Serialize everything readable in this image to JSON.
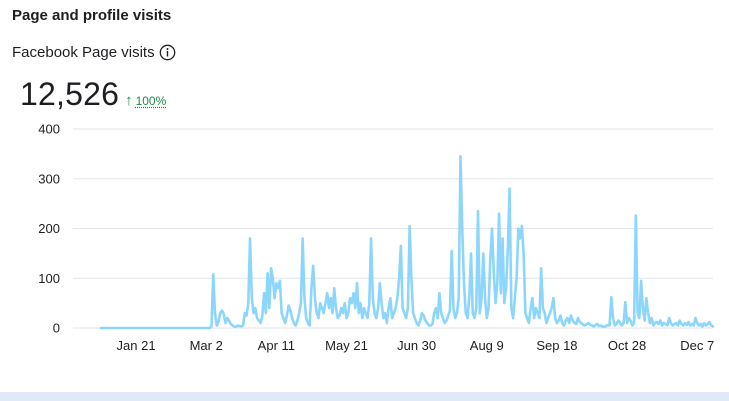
{
  "header": {
    "title": "Page and profile visits"
  },
  "metric": {
    "label": "Facebook Page visits",
    "value": "12,526",
    "change": "100%",
    "trend_direction": "up"
  },
  "colors": {
    "line": "#8dd6fb",
    "grid": "#e4e6eb",
    "trend": "#1f8a4c"
  },
  "icons": {
    "info": "info-icon",
    "trend": "arrow-up-icon"
  },
  "chart_data": {
    "type": "line",
    "title": "",
    "xlabel": "",
    "ylabel": "",
    "ylim": [
      0,
      400
    ],
    "yticks": [
      "0",
      "100",
      "200",
      "300",
      "400"
    ],
    "xticks": [
      {
        "label": "Jan 21",
        "day": 20
      },
      {
        "label": "Mar 2",
        "day": 60
      },
      {
        "label": "Apr 11",
        "day": 100
      },
      {
        "label": "May 21",
        "day": 140
      },
      {
        "label": "Jun 30",
        "day": 180
      },
      {
        "label": "Aug 9",
        "day": 220
      },
      {
        "label": "Sep 18",
        "day": 260
      },
      {
        "label": "Oct 28",
        "day": 300
      },
      {
        "label": "Dec 7",
        "day": 340
      }
    ],
    "grid": true,
    "legend": "none",
    "series": [
      {
        "values": [
          0,
          0,
          0,
          0,
          0,
          0,
          0,
          0,
          0,
          0,
          0,
          0,
          0,
          0,
          0,
          0,
          0,
          0,
          0,
          0,
          0,
          0,
          0,
          0,
          0,
          0,
          0,
          0,
          0,
          0,
          0,
          0,
          0,
          0,
          0,
          0,
          0,
          0,
          0,
          0,
          0,
          0,
          0,
          0,
          0,
          0,
          0,
          0,
          0,
          0,
          0,
          0,
          0,
          0,
          0,
          0,
          0,
          0,
          0,
          0,
          0,
          0,
          0,
          3,
          108,
          30,
          5,
          12,
          30,
          35,
          28,
          10,
          20,
          15,
          8,
          5,
          3,
          2,
          5,
          4,
          3,
          5,
          30,
          25,
          50,
          180,
          60,
          30,
          40,
          20,
          15,
          10,
          25,
          70,
          30,
          110,
          40,
          120,
          100,
          60,
          90,
          80,
          95,
          30,
          20,
          10,
          25,
          45,
          35,
          20,
          10,
          5,
          15,
          30,
          50,
          180,
          60,
          20,
          10,
          5,
          80,
          125,
          60,
          30,
          20,
          50,
          40,
          30,
          50,
          70,
          40,
          60,
          30,
          80,
          40,
          20,
          25,
          40,
          30,
          50,
          20,
          30,
          60,
          50,
          70,
          40,
          90,
          30,
          50,
          20,
          40,
          30,
          20,
          50,
          180,
          60,
          30,
          20,
          40,
          90,
          50,
          20,
          30,
          10,
          40,
          60,
          20,
          30,
          40,
          60,
          100,
          165,
          40,
          30,
          20,
          40,
          205,
          100,
          30,
          20,
          10,
          5,
          15,
          30,
          25,
          15,
          10,
          5,
          5,
          8,
          30,
          40,
          20,
          70,
          30,
          20,
          10,
          15,
          25,
          35,
          155,
          40,
          20,
          30,
          60,
          345,
          200,
          90,
          30,
          20,
          60,
          150,
          30,
          20,
          40,
          235,
          30,
          60,
          150,
          60,
          20,
          40,
          140,
          200,
          110,
          50,
          90,
          230,
          70,
          180,
          50,
          80,
          160,
          280,
          40,
          20,
          60,
          100,
          200,
          180,
          205,
          150,
          30,
          20,
          10,
          40,
          60,
          20,
          40,
          30,
          20,
          120,
          40,
          30,
          10,
          20,
          30,
          40,
          60,
          20,
          10,
          15,
          25,
          10,
          5,
          15,
          20,
          10,
          25,
          15,
          10,
          8,
          20,
          12,
          10,
          6,
          5,
          8,
          10,
          6,
          5,
          3,
          6,
          8,
          4,
          5,
          3,
          2,
          4,
          6,
          5,
          62,
          20,
          5,
          8,
          15,
          10,
          5,
          10,
          52,
          10,
          20,
          15,
          5,
          10,
          226,
          30,
          20,
          95,
          40,
          15,
          60,
          30,
          10,
          20,
          5,
          10,
          12,
          8,
          15,
          5,
          10,
          8,
          5,
          20,
          10,
          5,
          8,
          10,
          5,
          15,
          8,
          5,
          10,
          6,
          12,
          5,
          8,
          5,
          20,
          10,
          5,
          8,
          3,
          10,
          5,
          8,
          12,
          5,
          3
        ]
      }
    ]
  }
}
